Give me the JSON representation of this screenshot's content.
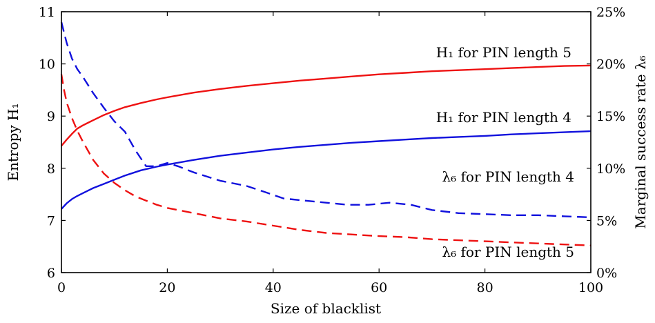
{
  "chart_data": {
    "type": "line",
    "title": "",
    "xlabel": "Size of blacklist",
    "ylabel_left": "Entropy H₁",
    "ylabel_right": "Marginal success rate λ₆",
    "xlim": [
      0,
      100
    ],
    "ylim_left": [
      6,
      11
    ],
    "ylim_right": [
      0,
      25
    ],
    "x_ticks": [
      "0",
      "20",
      "40",
      "60",
      "80",
      "100"
    ],
    "y_ticks_left": [
      "6",
      "7",
      "8",
      "9",
      "10",
      "11"
    ],
    "y_ticks_right": [
      "0%",
      "5%",
      "10%",
      "15%",
      "20%",
      "25%"
    ],
    "grid": false,
    "series": [
      {
        "name": "H₁ for PIN length 5",
        "axis": "left",
        "style": "solid",
        "color": "#ee1111",
        "x": [
          0,
          1,
          2,
          3,
          4,
          5,
          6,
          8,
          10,
          12,
          15,
          18,
          20,
          25,
          30,
          35,
          40,
          45,
          50,
          55,
          60,
          65,
          70,
          75,
          80,
          85,
          90,
          95,
          100
        ],
        "y": [
          8.43,
          8.55,
          8.66,
          8.76,
          8.82,
          8.87,
          8.92,
          9.02,
          9.1,
          9.17,
          9.25,
          9.32,
          9.36,
          9.45,
          9.52,
          9.58,
          9.63,
          9.68,
          9.72,
          9.76,
          9.8,
          9.83,
          9.86,
          9.88,
          9.9,
          9.92,
          9.94,
          9.96,
          9.97
        ]
      },
      {
        "name": "H₁ for PIN length 4",
        "axis": "left",
        "style": "solid",
        "color": "#1111dd",
        "x": [
          0,
          1,
          2,
          3,
          4,
          5,
          6,
          8,
          10,
          12,
          15,
          18,
          20,
          25,
          30,
          35,
          40,
          45,
          50,
          55,
          60,
          65,
          70,
          75,
          80,
          85,
          90,
          95,
          100
        ],
        "y": [
          7.22,
          7.33,
          7.41,
          7.47,
          7.52,
          7.57,
          7.62,
          7.7,
          7.78,
          7.86,
          7.96,
          8.03,
          8.07,
          8.16,
          8.24,
          8.3,
          8.36,
          8.41,
          8.45,
          8.49,
          8.52,
          8.55,
          8.58,
          8.6,
          8.62,
          8.65,
          8.67,
          8.69,
          8.71
        ]
      },
      {
        "name": "λ₆ for PIN length 4",
        "axis": "right",
        "style": "dashed",
        "color": "#1111dd",
        "x": [
          0,
          0.5,
          1,
          2,
          3,
          4,
          6,
          8,
          10,
          12,
          14,
          16,
          18,
          20,
          22,
          25,
          30,
          35,
          38,
          42,
          46,
          50,
          54,
          58,
          62,
          66,
          70,
          75,
          80,
          85,
          90,
          95,
          100
        ],
        "y": [
          24.0,
          23.0,
          22.0,
          20.5,
          19.5,
          18.8,
          17.2,
          15.8,
          14.5,
          13.5,
          11.7,
          10.2,
          10.2,
          10.5,
          10.2,
          9.6,
          8.8,
          8.3,
          7.8,
          7.1,
          6.9,
          6.7,
          6.5,
          6.5,
          6.7,
          6.5,
          6.0,
          5.7,
          5.6,
          5.5,
          5.5,
          5.4,
          5.3
        ]
      },
      {
        "name": "λ₆ for PIN length 5",
        "axis": "right",
        "style": "dashed",
        "color": "#ee1111",
        "x": [
          0,
          0.5,
          1,
          2,
          3,
          4,
          6,
          8,
          10,
          12,
          14,
          16,
          18,
          20,
          25,
          30,
          35,
          40,
          45,
          50,
          55,
          60,
          65,
          70,
          75,
          80,
          85,
          90,
          95,
          100
        ],
        "y": [
          19.0,
          17.5,
          16.3,
          14.8,
          13.6,
          12.6,
          10.8,
          9.5,
          8.6,
          7.9,
          7.3,
          6.9,
          6.5,
          6.2,
          5.7,
          5.2,
          4.9,
          4.5,
          4.1,
          3.8,
          3.65,
          3.5,
          3.4,
          3.2,
          3.1,
          3.0,
          2.9,
          2.8,
          2.7,
          2.6
        ]
      }
    ],
    "annotations": [
      {
        "text": "H₁ for PIN length 5",
        "series": 0
      },
      {
        "text": "H₁ for PIN length 4",
        "series": 1
      },
      {
        "text": "λ₆ for PIN length 4",
        "series": 2
      },
      {
        "text": "λ₆ for PIN length 5",
        "series": 3
      }
    ]
  }
}
